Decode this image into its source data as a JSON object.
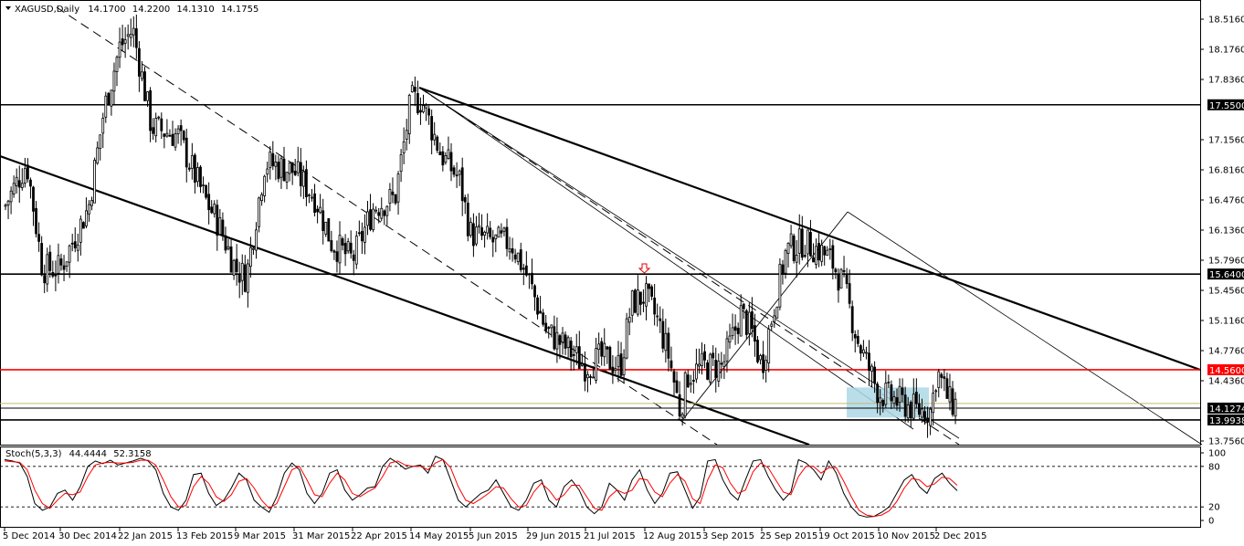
{
  "main_header": {
    "symbol": "XAGUSD,Daily",
    "open": "14.1700",
    "high": "14.2200",
    "low": "14.1310",
    "close": "14.1755"
  },
  "stoch_header": {
    "name": "Stoch(5,3,3)",
    "main_value": "44.4444",
    "signal_value": "52.3158"
  },
  "colors": {
    "bull_candle": "#000000",
    "bear_candle": "#000000",
    "level_line": "#000000",
    "resistance_line": "#ff0000",
    "stoch_main": "#000000",
    "stoch_signal": "#ff0000",
    "zone_fill": "#add8e6",
    "current_price_line": "#c8b878"
  },
  "chart_data": [
    {
      "type": "candlestick",
      "title": "XAGUSD,Daily",
      "x_tick_labels": [
        "5 Dec 2014",
        "30 Dec 2014",
        "22 Jan 2015",
        "13 Feb 2015",
        "9 Mar 2015",
        "31 Mar 2015",
        "22 Apr 2015",
        "14 May 2015",
        "5 Jun 2015",
        "29 Jun 2015",
        "21 Jul 2015",
        "12 Aug 2015",
        "3 Sep 2015",
        "25 Sep 2015",
        "19 Oct 2015",
        "10 Nov 2015",
        "2 Dec 2015"
      ],
      "y_tick_labels": [
        "18.5160",
        "18.1760",
        "17.8360",
        "17.1560",
        "16.8160",
        "16.4760",
        "16.1360",
        "15.7960",
        "15.4560",
        "15.1160",
        "14.7760",
        "14.4360",
        "13.7560"
      ],
      "ylim": [
        13.7,
        18.6
      ],
      "grid": false,
      "close_series_keypoints": [
        [
          "5 Dec 2014",
          16.4
        ],
        [
          "15 Dec 2014",
          16.9
        ],
        [
          "22 Dec 2014",
          15.7
        ],
        [
          "30 Dec 2014",
          15.7
        ],
        [
          "10 Jan 2015",
          16.4
        ],
        [
          "16 Jan 2015",
          17.5
        ],
        [
          "22 Jan 2015",
          18.2
        ],
        [
          "27 Jan 2015",
          18.4
        ],
        [
          "3 Feb 2015",
          17.3
        ],
        [
          "13 Feb 2015",
          17.2
        ],
        [
          "24 Feb 2015",
          16.5
        ],
        [
          "2 Mar 2015",
          16.2
        ],
        [
          "9 Mar 2015",
          15.7
        ],
        [
          "13 Mar 2015",
          15.6
        ],
        [
          "20 Mar 2015",
          16.9
        ],
        [
          "31 Mar 2015",
          16.8
        ],
        [
          "8 Apr 2015",
          16.5
        ],
        [
          "14 Apr 2015",
          16.0
        ],
        [
          "22 Apr 2015",
          15.8
        ],
        [
          "30 Apr 2015",
          16.4
        ],
        [
          "8 May 2015",
          16.5
        ],
        [
          "14 May 2015",
          17.6
        ],
        [
          "18 May 2015",
          17.6
        ],
        [
          "25 May 2015",
          17.0
        ],
        [
          "1 Jun 2015",
          16.7
        ],
        [
          "5 Jun 2015",
          16.1
        ],
        [
          "15 Jun 2015",
          16.0
        ],
        [
          "22 Jun 2015",
          16.0
        ],
        [
          "29 Jun 2015",
          15.6
        ],
        [
          "6 Jul 2015",
          15.0
        ],
        [
          "14 Jul 2015",
          14.8
        ],
        [
          "21 Jul 2015",
          14.6
        ],
        [
          "27 Jul 2015",
          14.7
        ],
        [
          "3 Aug 2015",
          14.6
        ],
        [
          "7 Aug 2015",
          15.3
        ],
        [
          "12 Aug 2015",
          15.4
        ],
        [
          "17 Aug 2015",
          15.1
        ],
        [
          "21 Aug 2015",
          14.7
        ],
        [
          "25 Aug 2015",
          14.1
        ],
        [
          "28 Aug 2015",
          14.5
        ],
        [
          "3 Sep 2015",
          14.6
        ],
        [
          "10 Sep 2015",
          14.6
        ],
        [
          "17 Sep 2015",
          15.2
        ],
        [
          "21 Sep 2015",
          15.0
        ],
        [
          "25 Sep 2015",
          14.6
        ],
        [
          "1 Oct 2015",
          15.4
        ],
        [
          "5 Oct 2015",
          15.9
        ],
        [
          "12 Oct 2015",
          16.0
        ],
        [
          "19 Oct 2015",
          15.9
        ],
        [
          "23 Oct 2015",
          15.8
        ],
        [
          "28 Oct 2015",
          15.5
        ],
        [
          "2 Nov 2015",
          14.9
        ],
        [
          "6 Nov 2015",
          14.6
        ],
        [
          "10 Nov 2015",
          14.3
        ],
        [
          "18 Nov 2015",
          14.2
        ],
        [
          "25 Nov 2015",
          14.1
        ],
        [
          "30 Nov 2015",
          14.1
        ],
        [
          "2 Dec 2015",
          14.5
        ],
        [
          "3 Dec 2015",
          14.5
        ],
        [
          "7 Dec 2015",
          14.2
        ],
        [
          "8 Dec 2015",
          14.18
        ]
      ],
      "horizontal_levels": [
        {
          "label": "17.5500",
          "value": 17.55
        },
        {
          "label": "15.6400",
          "value": 15.64
        },
        {
          "label": "14.5600",
          "value": 14.56
        },
        {
          "label": "14.1274",
          "value": 14.1274
        },
        {
          "label": "13.9938",
          "value": 13.9938
        }
      ],
      "annotations": [
        "down-arrow marker near 29 Jun 2015",
        "shaded zone near Nov 2015"
      ]
    },
    {
      "type": "line",
      "title": "Stoch(5,3,3) 44.4444 52.3158",
      "y_tick_labels": [
        "100",
        "80",
        "20",
        "0"
      ],
      "ylim": [
        0,
        100
      ],
      "reference_levels": [
        80,
        20
      ],
      "series": [
        {
          "name": "main",
          "values": [
            90,
            88,
            85,
            65,
            25,
            15,
            20,
            40,
            45,
            30,
            50,
            80,
            88,
            84,
            89,
            82,
            85,
            88,
            92,
            88,
            75,
            40,
            20,
            15,
            30,
            68,
            70,
            40,
            22,
            30,
            48,
            70,
            60,
            30,
            20,
            12,
            35,
            70,
            85,
            75,
            40,
            25,
            40,
            70,
            75,
            45,
            30,
            38,
            48,
            50,
            80,
            92,
            85,
            76,
            80,
            82,
            70,
            95,
            90,
            60,
            30,
            20,
            30,
            40,
            45,
            60,
            40,
            20,
            15,
            30,
            55,
            60,
            30,
            20,
            50,
            60,
            45,
            20,
            10,
            20,
            55,
            45,
            30,
            60,
            75,
            45,
            25,
            40,
            70,
            72,
            45,
            18,
            35,
            88,
            90,
            60,
            40,
            30,
            60,
            88,
            90,
            65,
            45,
            30,
            42,
            90,
            85,
            75,
            60,
            88,
            70,
            40,
            20,
            8,
            5,
            6,
            12,
            20,
            40,
            60,
            68,
            50,
            40,
            62,
            70,
            55,
            44
          ]
        },
        {
          "name": "signal",
          "values": [
            88,
            87,
            86,
            75,
            45,
            25,
            18,
            30,
            40,
            38,
            42,
            65,
            82,
            85,
            86,
            85,
            85,
            86,
            89,
            89,
            82,
            60,
            35,
            20,
            22,
            50,
            65,
            55,
            35,
            28,
            38,
            58,
            62,
            48,
            30,
            18,
            25,
            50,
            75,
            80,
            60,
            38,
            35,
            55,
            70,
            60,
            40,
            35,
            42,
            48,
            65,
            85,
            88,
            82,
            80,
            80,
            75,
            85,
            90,
            78,
            50,
            30,
            25,
            32,
            40,
            50,
            48,
            32,
            20,
            22,
            42,
            55,
            45,
            30,
            38,
            52,
            52,
            35,
            18,
            15,
            35,
            45,
            40,
            45,
            62,
            60,
            42,
            35,
            55,
            68,
            58,
            32,
            25,
            60,
            82,
            78,
            55,
            40,
            45,
            72,
            85,
            78,
            60,
            42,
            38,
            65,
            80,
            80,
            70,
            78,
            78,
            58,
            35,
            15,
            8,
            6,
            8,
            14,
            28,
            48,
            62,
            60,
            50,
            54,
            64,
            62,
            52
          ]
        }
      ]
    }
  ]
}
